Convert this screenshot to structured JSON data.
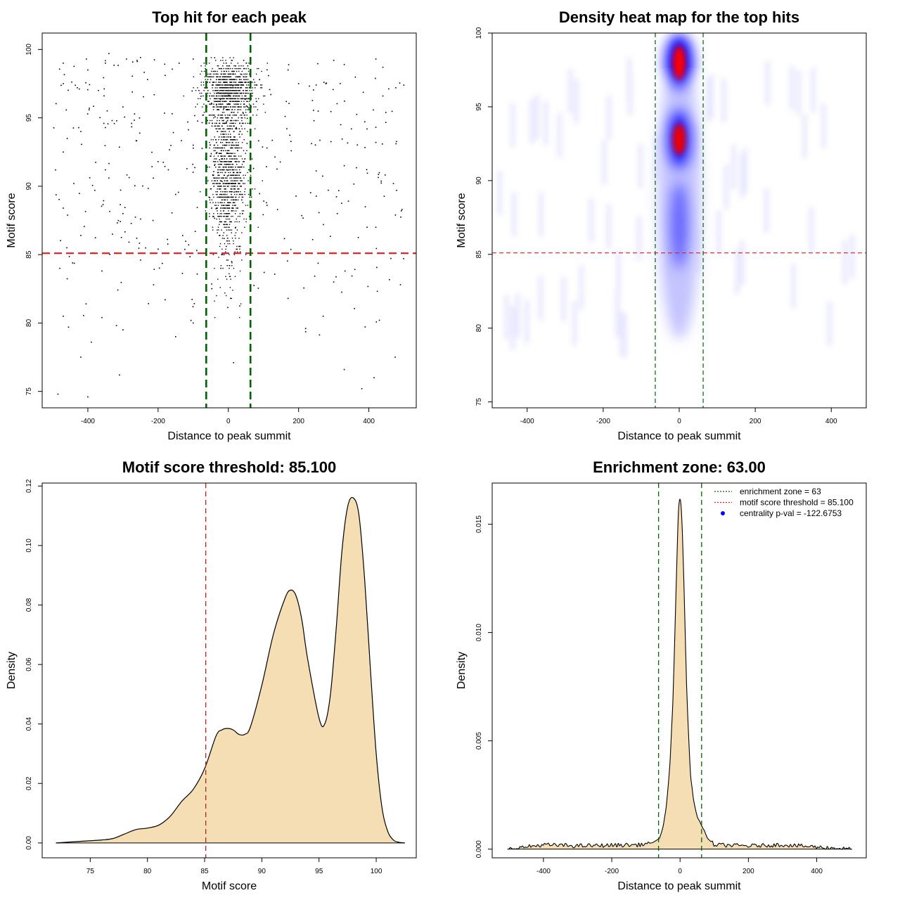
{
  "chart_data": [
    {
      "id": "scatter",
      "type": "scatter",
      "title": "Top hit for each peak",
      "xlabel": "Distance to peak summit",
      "ylabel": "Motif score",
      "xlim": [
        -530,
        535
      ],
      "ylim": [
        73.8,
        101.2
      ],
      "xticks": [
        -400,
        -200,
        0,
        200,
        400
      ],
      "xtick_labels": [
        "-400",
        "-200",
        "0",
        "200",
        "400"
      ],
      "yticks": [
        75,
        80,
        85,
        90,
        95,
        100
      ],
      "ytick_labels": [
        "75",
        "80",
        "85",
        "90",
        "95",
        "100"
      ],
      "hline": 85.1,
      "vlines": [
        -63,
        63
      ],
      "hline_color": "#e41a1c",
      "vline_color": "#006400",
      "point_color": "#000000",
      "sample_points": [
        [
          -400,
          74.6
        ],
        [
          -485,
          74.8
        ],
        [
          -310,
          76.2
        ],
        [
          -420,
          77.5
        ],
        [
          475,
          77.5
        ],
        [
          330,
          76.6
        ],
        [
          15,
          77.1
        ],
        [
          380,
          75.2
        ],
        [
          415,
          76.0
        ],
        [
          -150,
          79.0
        ],
        [
          -390,
          78.6
        ],
        [
          -300,
          79.5
        ],
        [
          430,
          80.2
        ],
        [
          -470,
          80.5
        ],
        [
          220,
          79.6
        ],
        [
          -455,
          79.7
        ],
        [
          270,
          80.5
        ],
        [
          -180,
          81.7
        ],
        [
          -405,
          81.4
        ],
        [
          -360,
          80.4
        ],
        [
          170,
          81.8
        ],
        [
          -100,
          80.0
        ],
        [
          490,
          82.8
        ],
        [
          -480,
          84.0
        ],
        [
          -360,
          83.8
        ],
        [
          -250,
          84.6
        ],
        [
          300,
          83.0
        ],
        [
          -460,
          85.5
        ],
        [
          -200,
          85.4
        ],
        [
          -330,
          86.5
        ],
        [
          -90,
          85.3
        ],
        [
          240,
          86.1
        ],
        [
          420,
          87.0
        ],
        [
          -420,
          86.4
        ],
        [
          -300,
          88.0
        ],
        [
          390,
          88.5
        ],
        [
          -470,
          88.4
        ],
        [
          -250,
          87.6
        ],
        [
          140,
          88.3
        ],
        [
          -150,
          89.4
        ],
        [
          -440,
          90.2
        ],
        [
          330,
          91.5
        ],
        [
          -380,
          89.7
        ],
        [
          470,
          90.2
        ],
        [
          -200,
          91.8
        ],
        [
          -350,
          91.2
        ],
        [
          110,
          92.8
        ],
        [
          -470,
          92.5
        ],
        [
          -420,
          94.0
        ],
        [
          420,
          93.2
        ],
        [
          -100,
          93.0
        ],
        [
          -160,
          95.3
        ],
        [
          320,
          94.5
        ],
        [
          -300,
          95.8
        ],
        [
          440,
          96.6
        ],
        [
          -370,
          97.0
        ],
        [
          250,
          97.4
        ],
        [
          -470,
          97.5
        ],
        [
          -260,
          99.2
        ],
        [
          170,
          98.5
        ],
        [
          -400,
          98.5
        ],
        [
          -290,
          99.3
        ],
        [
          330,
          98.9
        ],
        [
          -470,
          99.0
        ],
        [
          440,
          98.7
        ],
        [
          -350,
          99.0
        ],
        [
          -180,
          98.1
        ],
        [
          300,
          99.2
        ],
        [
          -100,
          99.3
        ],
        [
          -230,
          97.8
        ],
        [
          420,
          99.3
        ],
        [
          -340,
          99.7
        ],
        [
          -430,
          97.2
        ],
        [
          200,
          97.5
        ],
        [
          -140,
          99.0
        ]
      ],
      "dense_band": {
        "note": "most points concentrated at |x| < 60, score 82-99"
      }
    },
    {
      "id": "heatmap",
      "type": "heatmap",
      "title": "Density heat map for the top hits",
      "xlabel": "Distance to peak summit",
      "ylabel": "Motif score",
      "xlim": [
        -492,
        492
      ],
      "ylim": [
        74.6,
        100
      ],
      "xticks": [
        -400,
        -200,
        0,
        200,
        400
      ],
      "xtick_labels": [
        "-400",
        "-200",
        "0",
        "200",
        "400"
      ],
      "yticks": [
        75,
        80,
        85,
        90,
        95,
        100
      ],
      "ytick_labels": [
        "75",
        "80",
        "85",
        "90",
        "95",
        "100"
      ],
      "hline": 85.1,
      "vlines": [
        -63,
        63
      ],
      "hline_color": "#e41a1c",
      "vline_color": "#006400",
      "hot_spots": [
        {
          "x": 0,
          "y": 98.0,
          "intensity": "high",
          "color": "#ff0000"
        },
        {
          "x": 0,
          "y": 92.8,
          "intensity": "high",
          "color": "#ee0000"
        }
      ],
      "low_color": "#ffffff",
      "mid_color": "#0000ff",
      "high_color": "#ff0000"
    },
    {
      "id": "density-score",
      "type": "area",
      "title": "Motif score threshold: 85.100",
      "xlabel": "Motif score",
      "ylabel": "Density",
      "xlim": [
        70.8,
        103.5
      ],
      "ylim": [
        -0.005,
        0.121
      ],
      "xticks": [
        75,
        80,
        85,
        90,
        95,
        100
      ],
      "xtick_labels": [
        "75",
        "80",
        "85",
        "90",
        "95",
        "100"
      ],
      "yticks": [
        0,
        0.02,
        0.04,
        0.06,
        0.08,
        0.1,
        0.12
      ],
      "ytick_labels": [
        "0.00",
        "0.02",
        "0.04",
        "0.06",
        "0.08",
        "0.10",
        "0.12"
      ],
      "vline": 85.1,
      "vline_color": "#b22222",
      "fill_color": "#f5deb3",
      "x": [
        72,
        74,
        76,
        77,
        78,
        79,
        80,
        81,
        82,
        83,
        84,
        85,
        86,
        86.5,
        87,
        87.5,
        88,
        88.5,
        89,
        90,
        91,
        92,
        92.5,
        93,
        93.5,
        94,
        95,
        95.5,
        96,
        96.5,
        97,
        97.5,
        98,
        98.5,
        99,
        99.5,
        100,
        100.5,
        101,
        101.5,
        102,
        102.5
      ],
      "y": [
        0,
        0.0005,
        0.001,
        0.0015,
        0.003,
        0.0045,
        0.005,
        0.006,
        0.009,
        0.014,
        0.018,
        0.025,
        0.036,
        0.038,
        0.0385,
        0.038,
        0.0365,
        0.0365,
        0.039,
        0.053,
        0.07,
        0.082,
        0.085,
        0.083,
        0.075,
        0.062,
        0.042,
        0.04,
        0.05,
        0.072,
        0.098,
        0.113,
        0.116,
        0.11,
        0.088,
        0.058,
        0.03,
        0.012,
        0.004,
        0.001,
        0.0002,
        0
      ]
    },
    {
      "id": "density-distance",
      "type": "area",
      "title": "Enrichment zone: 63.00",
      "xlabel": "Distance to peak summit",
      "ylabel": "Density",
      "xlim": [
        -550,
        545
      ],
      "ylim": [
        -0.0004,
        0.0169
      ],
      "xticks": [
        -400,
        -200,
        0,
        200,
        400
      ],
      "xtick_labels": [
        "-400",
        "-200",
        "0",
        "200",
        "400"
      ],
      "yticks": [
        0,
        0.005,
        0.01,
        0.015
      ],
      "ytick_labels": [
        "0.000",
        "0.005",
        "0.010",
        "0.015"
      ],
      "vlines": [
        -63,
        63
      ],
      "vline_color": "#006400",
      "fill_color": "#f5deb3",
      "x": [
        -505,
        -400,
        -300,
        -200,
        -120,
        -80,
        -60,
        -50,
        -40,
        -30,
        -20,
        -10,
        -5,
        0,
        5,
        10,
        20,
        30,
        40,
        50,
        60,
        65,
        70,
        80,
        100,
        200,
        300,
        400,
        500
      ],
      "y": [
        0,
        0.0002,
        0.00015,
        0.00018,
        0.0002,
        0.0003,
        0.0005,
        0.001,
        0.002,
        0.0038,
        0.0072,
        0.013,
        0.0155,
        0.0163,
        0.0155,
        0.013,
        0.007,
        0.0035,
        0.0022,
        0.0015,
        0.0012,
        0.001,
        0.0009,
        0.0005,
        0.0002,
        0.00015,
        0.0002,
        0.0001,
        0
      ],
      "legend": [
        {
          "label": "enrichment zone = 63",
          "color": "#006400",
          "style": "dotted-line"
        },
        {
          "label": "motif score threshold = 85.100",
          "color": "#e41a1c",
          "style": "dotted-line"
        },
        {
          "label": "centrality p-val = -122.6753",
          "color": "#0000ff",
          "style": "point"
        }
      ]
    }
  ]
}
